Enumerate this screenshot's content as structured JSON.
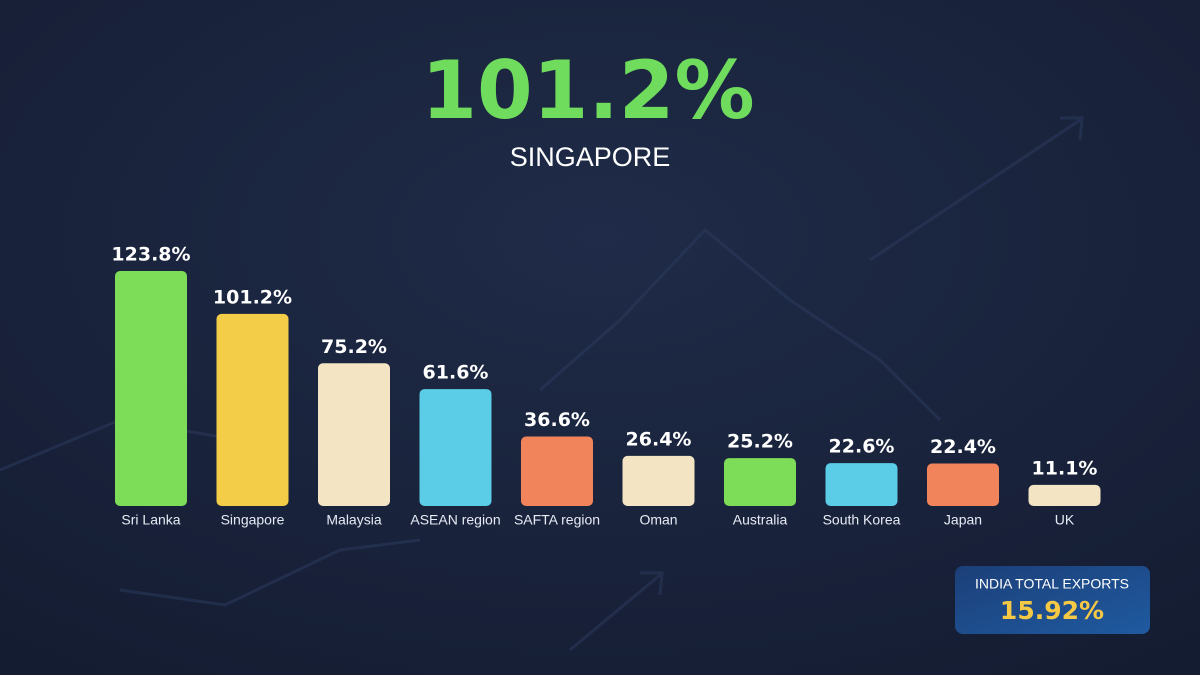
{
  "chart_data": {
    "type": "bar",
    "highlight": {
      "value_label": "101.2%",
      "label": "SINGAPORE"
    },
    "categories": [
      "Sri Lanka",
      "Singapore",
      "Malaysia",
      "ASEAN region",
      "SAFTA region",
      "Oman",
      "Australia",
      "South Korea",
      "Japan",
      "UK"
    ],
    "values": [
      123.8,
      101.2,
      75.2,
      61.6,
      36.6,
      26.4,
      25.2,
      22.6,
      22.4,
      11.1
    ],
    "value_labels": [
      "123.8%",
      "101.2%",
      "75.2%",
      "61.6%",
      "36.6%",
      "26.4%",
      "25.2%",
      "22.6%",
      "22.4%",
      "11.1%"
    ],
    "colors": [
      "#7ddc58",
      "#f3cc48",
      "#f3e5c4",
      "#5bcde6",
      "#f2845b",
      "#f3e5c4",
      "#7ddc58",
      "#5bcde6",
      "#f2845b",
      "#f3e5c4"
    ],
    "annotation": {
      "title": "INDIA TOTAL EXPORTS",
      "value_label": "15.92%"
    }
  }
}
